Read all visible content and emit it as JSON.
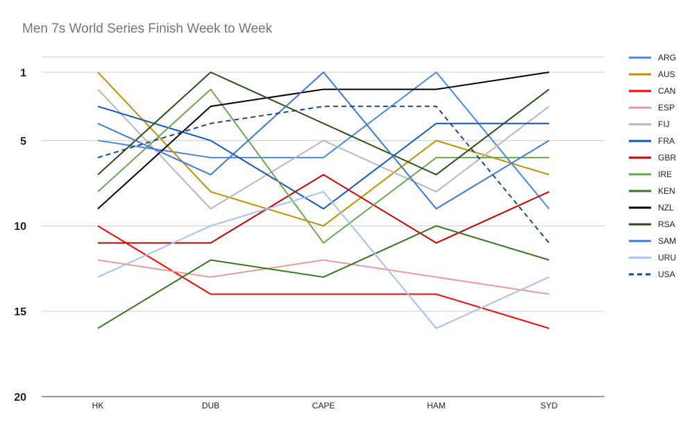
{
  "chart_data": {
    "type": "line",
    "title": "Men 7s World Series Finish Week to Week",
    "xlabel": "",
    "ylabel": "",
    "categories": [
      "HK",
      "DUB",
      "CAPE",
      "HAM",
      "SYD"
    ],
    "y_ticks": [
      "1",
      "5",
      "10",
      "15",
      "20"
    ],
    "ylim": [
      1,
      20
    ],
    "y_reversed": true,
    "grid": true,
    "legend_position": "right",
    "series": [
      {
        "name": "ARG",
        "color": "#4a86e8",
        "dash": "solid",
        "values": [
          5,
          6,
          6,
          1,
          9
        ]
      },
      {
        "name": "AUS",
        "color": "#bf9000",
        "dash": "solid",
        "values": [
          1,
          8,
          10,
          5,
          7
        ]
      },
      {
        "name": "CAN",
        "color": "#ff0000",
        "dash": "solid",
        "values": [
          10,
          14,
          14,
          14,
          16
        ]
      },
      {
        "name": "ESP",
        "color": "#ea9999",
        "dash": "solid",
        "values": [
          12,
          13,
          12,
          13,
          14
        ]
      },
      {
        "name": "FIJ",
        "color": "#b7b7b7",
        "dash": "solid",
        "values": [
          2,
          9,
          5,
          8,
          3
        ]
      },
      {
        "name": "FRA",
        "color": "#1155cc",
        "dash": "solid",
        "values": [
          3,
          5,
          9,
          4,
          4
        ]
      },
      {
        "name": "GBR",
        "color": "#cc0000",
        "dash": "solid",
        "values": [
          11,
          11,
          7,
          11,
          8
        ]
      },
      {
        "name": "IRE",
        "color": "#6aa84f",
        "dash": "solid",
        "values": [
          8,
          2,
          11,
          6,
          6
        ]
      },
      {
        "name": "KEN",
        "color": "#38761d",
        "dash": "solid",
        "values": [
          16,
          12,
          13,
          10,
          12
        ]
      },
      {
        "name": "NZL",
        "color": "#000000",
        "dash": "solid",
        "values": [
          9,
          3,
          2,
          2,
          1
        ]
      },
      {
        "name": "RSA",
        "color": "#274e13",
        "dash": "solid",
        "values": [
          7,
          1,
          4,
          7,
          2
        ]
      },
      {
        "name": "SAM",
        "color": "#3c78d8",
        "dash": "solid",
        "values": [
          4,
          7,
          1,
          9,
          5
        ]
      },
      {
        "name": "URU",
        "color": "#a4c2f4",
        "dash": "solid",
        "values": [
          13,
          10,
          8,
          16,
          13
        ]
      },
      {
        "name": "USA",
        "color": "#1c4587",
        "dash": "dashed",
        "values": [
          6,
          4,
          3,
          3,
          11
        ]
      }
    ]
  }
}
